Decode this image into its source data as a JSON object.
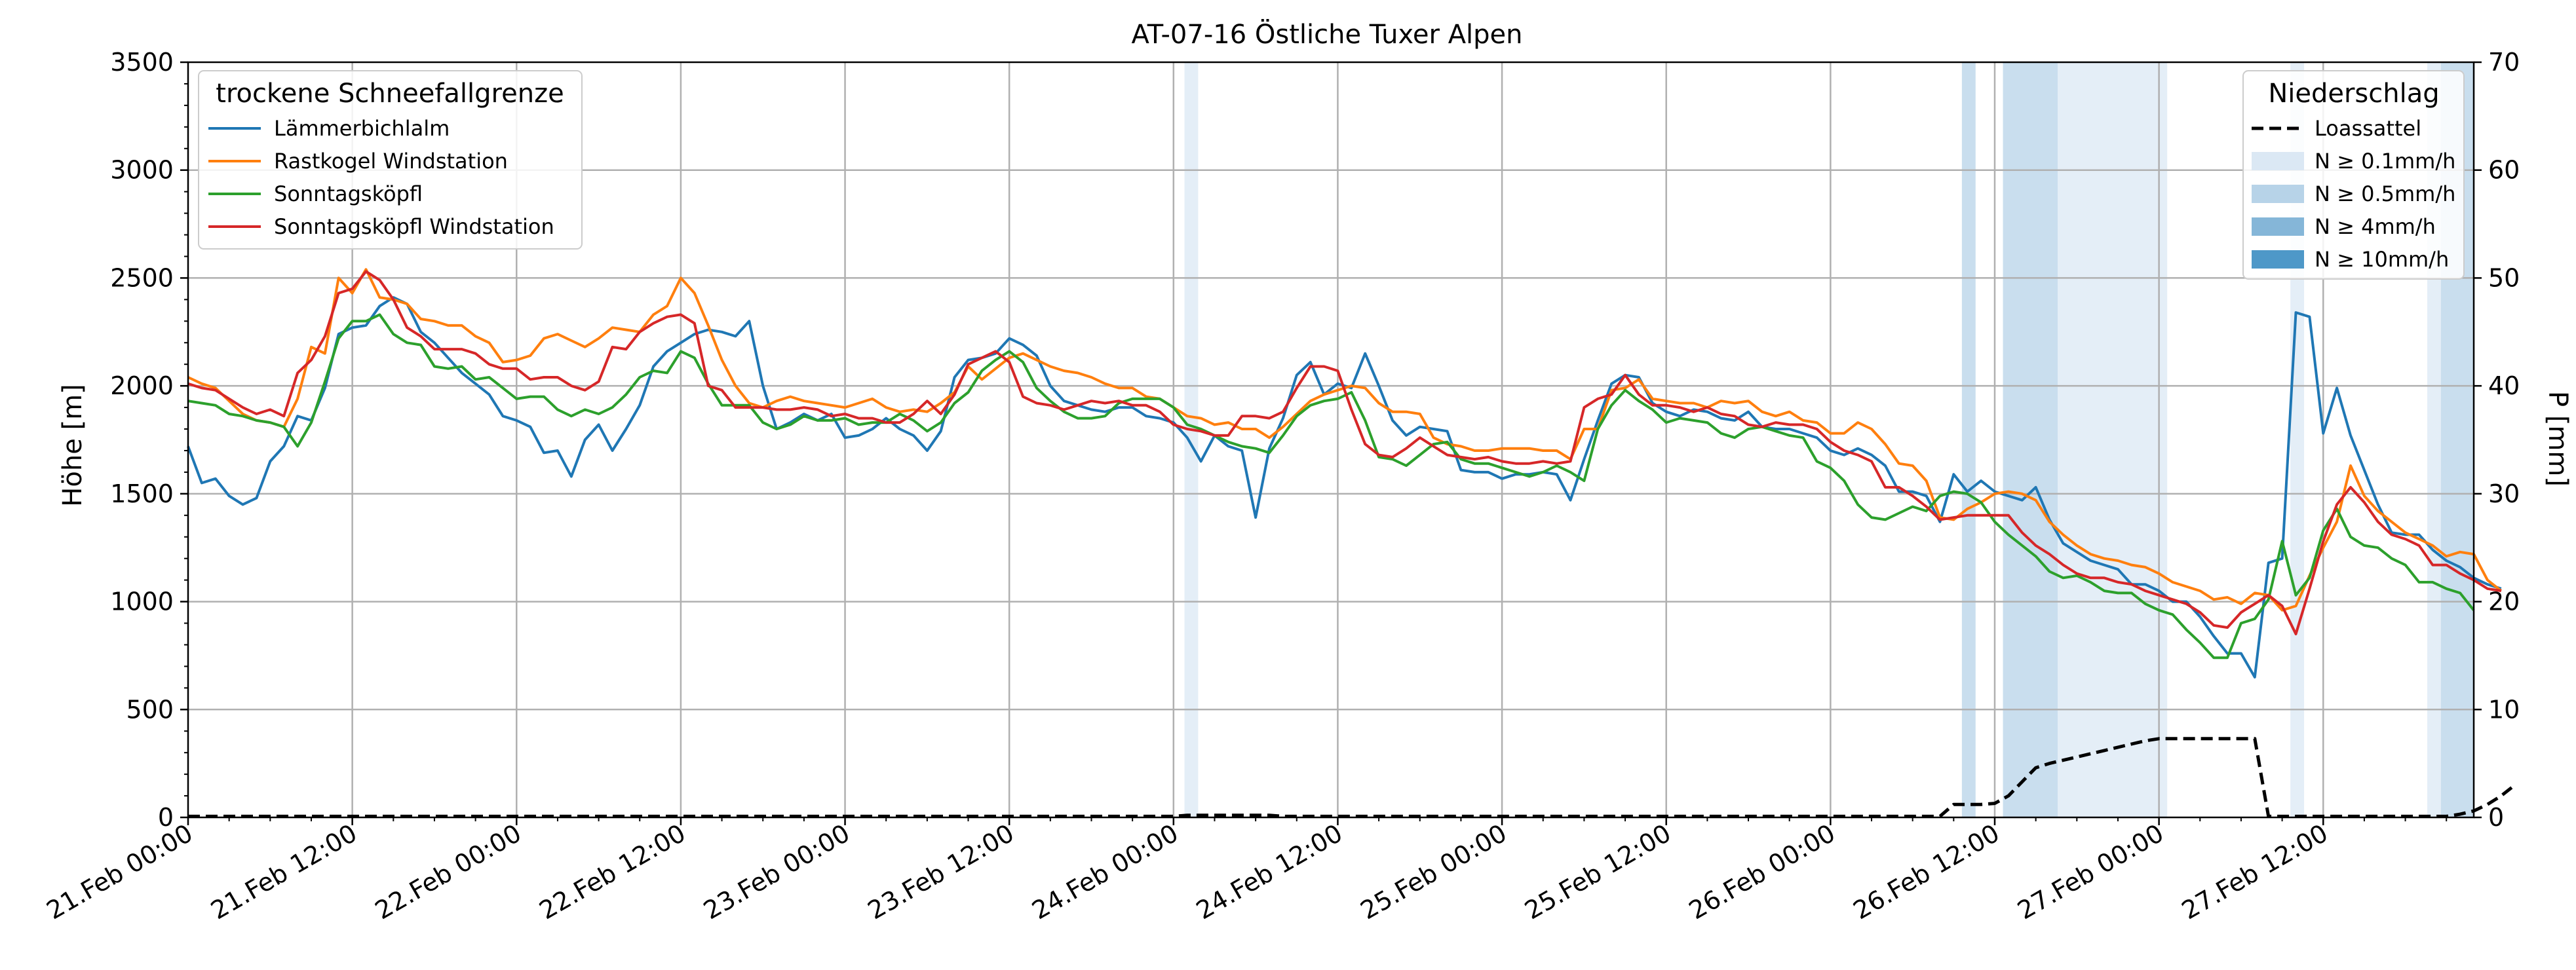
{
  "chart_data": {
    "type": "line",
    "title": "AT-07-16 Östliche Tuxer Alpen",
    "ylabel": "Höhe [m]",
    "y2label": "P [mm]",
    "xlabel": "",
    "ylim": [
      0,
      3500
    ],
    "y2lim": [
      0,
      70
    ],
    "xlim": [
      0,
      167
    ],
    "x_unit": "hours since 21.Feb 00:00",
    "grid": true,
    "x_ticks": [
      {
        "x": 0,
        "label": "21.Feb 00:00"
      },
      {
        "x": 12,
        "label": "21.Feb 12:00"
      },
      {
        "x": 24,
        "label": "22.Feb 00:00"
      },
      {
        "x": 36,
        "label": "22.Feb 12:00"
      },
      {
        "x": 48,
        "label": "23.Feb 00:00"
      },
      {
        "x": 60,
        "label": "23.Feb 12:00"
      },
      {
        "x": 72,
        "label": "24.Feb 00:00"
      },
      {
        "x": 84,
        "label": "24.Feb 12:00"
      },
      {
        "x": 96,
        "label": "25.Feb 00:00"
      },
      {
        "x": 108,
        "label": "25.Feb 12:00"
      },
      {
        "x": 120,
        "label": "26.Feb 00:00"
      },
      {
        "x": 132,
        "label": "26.Feb 12:00"
      },
      {
        "x": 144,
        "label": "27.Feb 00:00"
      },
      {
        "x": 156,
        "label": "27.Feb 12:00"
      }
    ],
    "y_ticks": [
      0,
      500,
      1000,
      1500,
      2000,
      2500,
      3000,
      3500
    ],
    "y2_ticks": [
      0,
      10,
      20,
      30,
      40,
      50,
      60,
      70
    ],
    "legend_left": {
      "title": "trockene Schneefallgrenze",
      "placement": "top-left"
    },
    "legend_right": {
      "title": "Niederschlag",
      "placement": "top-right",
      "entries": [
        {
          "label": "Loassattel",
          "style": "dashed-line",
          "color": "#000000"
        },
        {
          "label": "N ≥ 0.1mm/h",
          "style": "patch",
          "color": "#dbe8f4"
        },
        {
          "label": "N ≥ 0.5mm/h",
          "style": "patch",
          "color": "#b7d3e8"
        },
        {
          "label": "N ≥ 4mm/h",
          "style": "patch",
          "color": "#85b6d8"
        },
        {
          "label": "N ≥ 10mm/h",
          "style": "patch",
          "color": "#4e98c8"
        }
      ]
    },
    "series": [
      {
        "name": "Lämmerbichlalm",
        "color": "#1f77b4",
        "values": [
          1720,
          1550,
          1570,
          1490,
          1450,
          1480,
          1650,
          1720,
          1860,
          1840,
          1990,
          2240,
          2270,
          2280,
          2370,
          2410,
          2380,
          2250,
          2200,
          2130,
          2060,
          2010,
          1960,
          1860,
          1840,
          1810,
          1690,
          1700,
          1580,
          1750,
          1820,
          1700,
          1800,
          1910,
          2090,
          2160,
          2200,
          2240,
          2260,
          2250,
          2230,
          2300,
          2000,
          1800,
          1830,
          1870,
          1840,
          1870,
          1760,
          1770,
          1800,
          1850,
          1800,
          1770,
          1700,
          1790,
          2040,
          2120,
          2130,
          2150,
          2220,
          2190,
          2140,
          2000,
          1930,
          1910,
          1890,
          1880,
          1900,
          1900,
          1860,
          1850,
          1830,
          1760,
          1650,
          1770,
          1720,
          1700,
          1390,
          1710,
          1850,
          2050,
          2110,
          1960,
          2010,
          1990,
          2150,
          2000,
          1840,
          1770,
          1810,
          1800,
          1790,
          1610,
          1600,
          1600,
          1570,
          1590,
          1590,
          1600,
          1590,
          1470,
          1660,
          1840,
          2010,
          2050,
          2040,
          1920,
          1880,
          1860,
          1890,
          1880,
          1850,
          1840,
          1880,
          1810,
          1800,
          1800,
          1780,
          1760,
          1700,
          1680,
          1710,
          1680,
          1630,
          1510,
          1510,
          1490,
          1370,
          1590,
          1510,
          1560,
          1510,
          1490,
          1470,
          1530,
          1380,
          1270,
          1230,
          1190,
          1170,
          1150,
          1080,
          1080,
          1050,
          1000,
          1000,
          930,
          840,
          760,
          760,
          650,
          1180,
          1200,
          2340,
          2320,
          1780,
          1990,
          1770,
          1610,
          1450,
          1320,
          1310,
          1310,
          1240,
          1190,
          1160,
          1110,
          1080,
          1060
        ]
      },
      {
        "name": "Rastkogel Windstation",
        "color": "#ff7f0e",
        "values": [
          2040,
          2010,
          1990,
          1930,
          1870,
          1840,
          1830,
          1810,
          1940,
          2180,
          2150,
          2500,
          2430,
          2540,
          2410,
          2400,
          2380,
          2310,
          2300,
          2280,
          2280,
          2230,
          2200,
          2110,
          2120,
          2140,
          2220,
          2240,
          2210,
          2180,
          2220,
          2270,
          2260,
          2250,
          2330,
          2370,
          2500,
          2430,
          2280,
          2120,
          2000,
          1920,
          1900,
          1930,
          1950,
          1930,
          1920,
          1910,
          1900,
          1920,
          1940,
          1900,
          1880,
          1890,
          1880,
          1920,
          1970,
          2090,
          2030,
          2080,
          2130,
          2150,
          2120,
          2090,
          2070,
          2060,
          2040,
          2010,
          1990,
          1990,
          1950,
          1940,
          1900,
          1860,
          1850,
          1820,
          1830,
          1800,
          1800,
          1760,
          1810,
          1870,
          1930,
          1960,
          1980,
          2000,
          1990,
          1920,
          1880,
          1880,
          1870,
          1760,
          1730,
          1720,
          1700,
          1700,
          1710,
          1710,
          1710,
          1700,
          1700,
          1660,
          1800,
          1800,
          1980,
          1990,
          2030,
          1940,
          1930,
          1920,
          1920,
          1900,
          1930,
          1920,
          1930,
          1880,
          1860,
          1880,
          1840,
          1830,
          1780,
          1780,
          1830,
          1800,
          1730,
          1640,
          1630,
          1560,
          1390,
          1380,
          1430,
          1460,
          1500,
          1510,
          1500,
          1470,
          1370,
          1310,
          1260,
          1220,
          1200,
          1190,
          1170,
          1160,
          1130,
          1090,
          1070,
          1050,
          1010,
          1020,
          990,
          1040,
          1030,
          960,
          980,
          1120,
          1250,
          1370,
          1630,
          1490,
          1420,
          1370,
          1320,
          1290,
          1260,
          1210,
          1230,
          1220,
          1100,
          1050
        ]
      },
      {
        "name": "Sonntagsköpfl",
        "color": "#2ca02c",
        "values": [
          1930,
          1920,
          1910,
          1870,
          1860,
          1840,
          1830,
          1810,
          1720,
          1830,
          2020,
          2220,
          2300,
          2300,
          2330,
          2240,
          2200,
          2190,
          2090,
          2080,
          2090,
          2030,
          2040,
          1990,
          1940,
          1950,
          1950,
          1890,
          1860,
          1890,
          1870,
          1900,
          1960,
          2040,
          2070,
          2060,
          2160,
          2130,
          2010,
          1910,
          1910,
          1910,
          1830,
          1800,
          1820,
          1860,
          1840,
          1840,
          1850,
          1820,
          1830,
          1830,
          1870,
          1840,
          1790,
          1830,
          1920,
          1970,
          2070,
          2120,
          2160,
          2110,
          1990,
          1930,
          1880,
          1850,
          1850,
          1860,
          1920,
          1940,
          1940,
          1940,
          1900,
          1820,
          1800,
          1770,
          1740,
          1720,
          1710,
          1690,
          1770,
          1860,
          1910,
          1930,
          1940,
          1970,
          1840,
          1670,
          1660,
          1630,
          1680,
          1730,
          1740,
          1660,
          1640,
          1640,
          1620,
          1600,
          1580,
          1600,
          1630,
          1600,
          1560,
          1800,
          1910,
          1980,
          1930,
          1890,
          1830,
          1850,
          1840,
          1830,
          1780,
          1760,
          1800,
          1810,
          1790,
          1770,
          1760,
          1650,
          1620,
          1560,
          1450,
          1390,
          1380,
          1410,
          1440,
          1420,
          1490,
          1510,
          1500,
          1460,
          1370,
          1310,
          1260,
          1210,
          1140,
          1110,
          1120,
          1090,
          1050,
          1040,
          1040,
          990,
          960,
          940,
          870,
          810,
          740,
          740,
          900,
          920,
          1010,
          1280,
          1030,
          1110,
          1330,
          1430,
          1300,
          1260,
          1250,
          1200,
          1170,
          1090,
          1090,
          1060,
          1040,
          960
        ]
      },
      {
        "name": "Sonntagsköpfl Windstation",
        "color": "#d62728",
        "values": [
          2010,
          1990,
          1980,
          1940,
          1900,
          1870,
          1890,
          1860,
          2060,
          2120,
          2230,
          2430,
          2450,
          2530,
          2490,
          2400,
          2270,
          2230,
          2170,
          2170,
          2170,
          2150,
          2100,
          2080,
          2080,
          2030,
          2040,
          2040,
          2000,
          1980,
          2020,
          2180,
          2170,
          2250,
          2290,
          2320,
          2330,
          2290,
          2000,
          1980,
          1900,
          1900,
          1900,
          1890,
          1890,
          1900,
          1890,
          1860,
          1870,
          1850,
          1850,
          1830,
          1830,
          1870,
          1930,
          1870,
          1960,
          2100,
          2130,
          2160,
          2110,
          1950,
          1920,
          1910,
          1890,
          1910,
          1930,
          1920,
          1930,
          1910,
          1910,
          1880,
          1820,
          1800,
          1790,
          1770,
          1770,
          1860,
          1860,
          1850,
          1880,
          1990,
          2090,
          2090,
          2070,
          1890,
          1730,
          1680,
          1670,
          1710,
          1760,
          1720,
          1680,
          1670,
          1660,
          1670,
          1650,
          1640,
          1640,
          1650,
          1640,
          1650,
          1900,
          1940,
          1960,
          2050,
          1960,
          1910,
          1910,
          1900,
          1880,
          1900,
          1870,
          1860,
          1820,
          1810,
          1830,
          1820,
          1820,
          1800,
          1740,
          1700,
          1680,
          1650,
          1530,
          1530,
          1490,
          1440,
          1380,
          1390,
          1400,
          1400,
          1400,
          1400,
          1320,
          1260,
          1220,
          1170,
          1130,
          1110,
          1110,
          1090,
          1080,
          1050,
          1030,
          1010,
          990,
          950,
          890,
          880,
          950,
          990,
          1030,
          980,
          850,
          1060,
          1280,
          1450,
          1530,
          1460,
          1370,
          1310,
          1290,
          1260,
          1170,
          1170,
          1130,
          1100,
          1060,
          1050
        ]
      },
      {
        "name": "Loassattel",
        "axis": "right",
        "style": "dashed",
        "color": "#000000",
        "values": [
          0.1,
          0.1,
          0.1,
          0.1,
          0.1,
          0.1,
          0.1,
          0.1,
          0.1,
          0.1,
          0.1,
          0.1,
          0.1,
          0.1,
          0.1,
          0.1,
          0.1,
          0.1,
          0.1,
          0.1,
          0.1,
          0.1,
          0.1,
          0.1,
          0.1,
          0.1,
          0.1,
          0.1,
          0.1,
          0.1,
          0.1,
          0.1,
          0.1,
          0.1,
          0.1,
          0.1,
          0.1,
          0.1,
          0.1,
          0.1,
          0.1,
          0.1,
          0.1,
          0.1,
          0.1,
          0.1,
          0.1,
          0.1,
          0.1,
          0.1,
          0.1,
          0.1,
          0.1,
          0.1,
          0.1,
          0.1,
          0.1,
          0.1,
          0.1,
          0.1,
          0.1,
          0.1,
          0.1,
          0.1,
          0.1,
          0.1,
          0.1,
          0.1,
          0.1,
          0.1,
          0.1,
          0.1,
          0.1,
          0.2,
          0.2,
          0.2,
          0.2,
          0.2,
          0.2,
          0.2,
          0.1,
          0.1,
          0.1,
          0.1,
          0.1,
          0.1,
          0.1,
          0.1,
          0.1,
          0.1,
          0.1,
          0.1,
          0.1,
          0.1,
          0.1,
          0.1,
          0.1,
          0.1,
          0.1,
          0.1,
          0.1,
          0.1,
          0.1,
          0.1,
          0.1,
          0.1,
          0.1,
          0.1,
          0.1,
          0.1,
          0.1,
          0.1,
          0.1,
          0.1,
          0.1,
          0.1,
          0.1,
          0.1,
          0.1,
          0.1,
          0.1,
          0.1,
          0.1,
          0.1,
          0.1,
          0.1,
          0.1,
          0.1,
          0.1,
          1.2,
          1.2,
          1.2,
          1.3,
          2.0,
          3.3,
          4.6,
          5.0,
          5.3,
          5.6,
          5.9,
          6.2,
          6.5,
          6.8,
          7.1,
          7.3,
          7.3,
          7.3,
          7.3,
          7.3,
          7.3,
          7.3,
          7.3,
          0.1,
          0.1,
          0.1,
          0.1,
          0.1,
          0.1,
          0.1,
          0.1,
          0.1,
          0.1,
          0.1,
          0.1,
          0.1,
          0.1,
          0.3,
          0.6,
          1.2,
          2.0,
          3.0
        ]
      }
    ],
    "precip_bands": [
      {
        "start": 72.8,
        "end": 73.8,
        "level": "N ≥ 0.1mm/h"
      },
      {
        "start": 129.6,
        "end": 130.6,
        "level": "N ≥ 0.5mm/h"
      },
      {
        "start": 132.6,
        "end": 136.6,
        "level": "N ≥ 0.5mm/h"
      },
      {
        "start": 136.6,
        "end": 144.6,
        "level": "N ≥ 0.1mm/h"
      },
      {
        "start": 153.6,
        "end": 154.6,
        "level": "N ≥ 0.1mm/h"
      },
      {
        "start": 163.6,
        "end": 164.6,
        "level": "N ≥ 0.1mm/h"
      },
      {
        "start": 164.6,
        "end": 167,
        "level": "N ≥ 0.5mm/h"
      }
    ]
  }
}
